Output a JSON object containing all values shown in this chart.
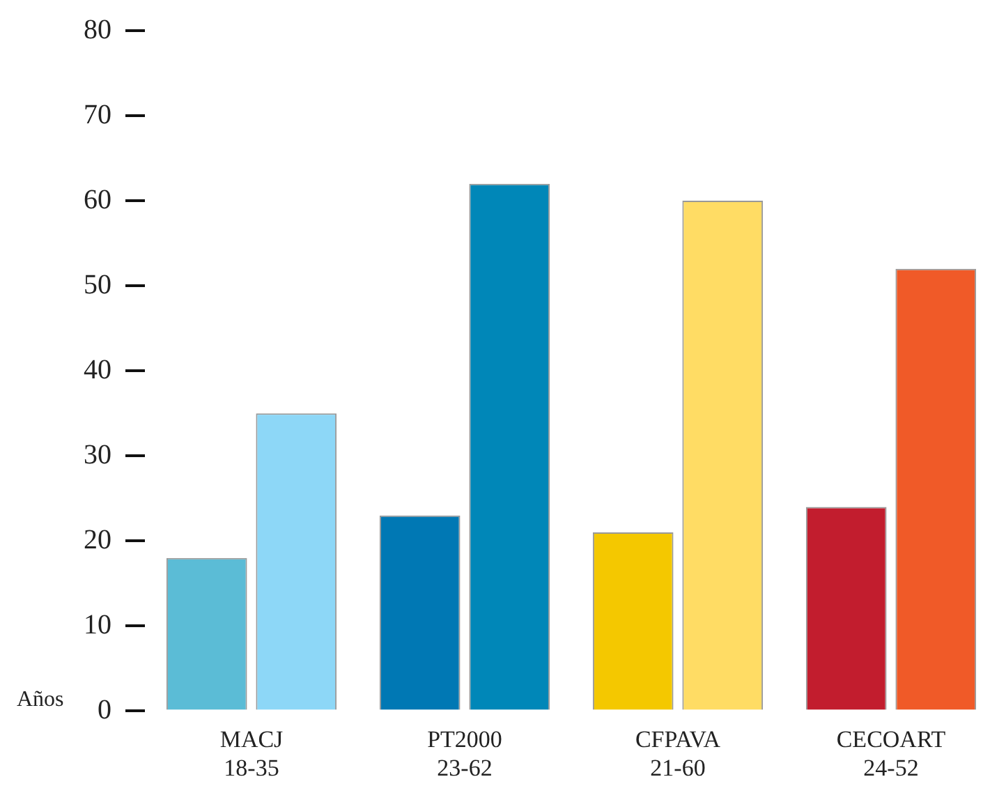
{
  "chart_data": {
    "type": "bar",
    "ylabel": "Años",
    "categories": [
      "MACJ\n18-35",
      "PT2000\n23-62",
      "CFPAVA\n21-60",
      "CECOART\n24-52"
    ],
    "series": [
      {
        "colors": [
          "#5bbcd6",
          "#0078b4",
          "#f4c800",
          "#c21d2e"
        ],
        "values": [
          18,
          23,
          21,
          24
        ]
      },
      {
        "colors": [
          "#8dd7f7",
          "#0087b8",
          "#ffdc64",
          "#f05a28"
        ],
        "values": [
          35,
          62,
          60,
          52
        ]
      }
    ],
    "ylim": [
      0,
      80
    ],
    "yticks": [
      0,
      10,
      20,
      30,
      40,
      50,
      60,
      70,
      80
    ],
    "grid": false,
    "legend": false
  }
}
